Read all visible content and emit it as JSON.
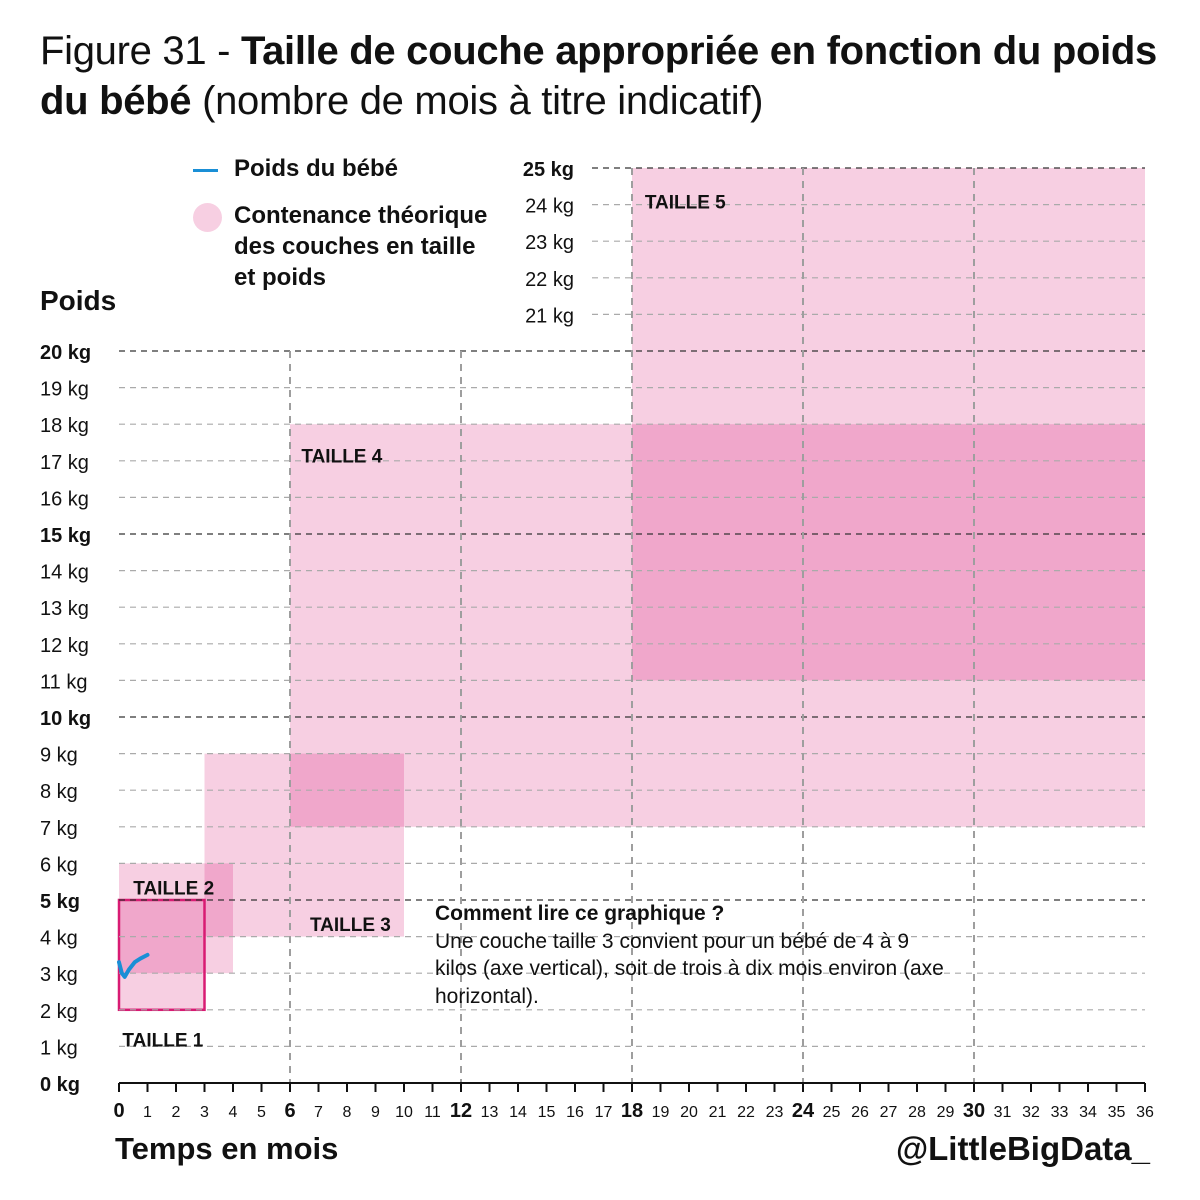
{
  "title": {
    "prefix": "Figure 31 - ",
    "main": "Taille de couche appropriée en fonction du poids du bébé",
    "suffix": " (nombre de mois à titre indicatif)"
  },
  "legend": {
    "line_label": "Poids du bébé",
    "area_label": "Contenance théorique des couches en taille et poids"
  },
  "note": {
    "heading": "Comment lire ce graphique ?",
    "text": "Une couche taille 3 convient pour un bébé de 4 à 9 kilos (axe vertical), soit de trois à dix mois environ (axe horizontal)."
  },
  "credit": "@LittleBigData_",
  "colors": {
    "area": "#f7cfe2",
    "overlap": "#f0a7cb",
    "outline": "#d81b73",
    "line": "#1a8fd6",
    "grid": "#9e9e9e"
  },
  "chart_data": {
    "type": "area",
    "xlabel": "Temps en mois",
    "ylabel": "Poids",
    "xlim": [
      0,
      36
    ],
    "ylim": [
      0,
      25
    ],
    "x_ticks": [
      0,
      1,
      2,
      3,
      4,
      5,
      6,
      7,
      8,
      9,
      10,
      11,
      12,
      13,
      14,
      15,
      16,
      17,
      18,
      19,
      20,
      21,
      22,
      23,
      24,
      25,
      26,
      27,
      28,
      29,
      30,
      31,
      32,
      33,
      34,
      35,
      36
    ],
    "x_major_ticks": [
      0,
      6,
      12,
      18,
      24,
      30
    ],
    "y_ticks_lower": [
      "0 kg",
      "1 kg",
      "2 kg",
      "3 kg",
      "4 kg",
      "5 kg",
      "6 kg",
      "7 kg",
      "8 kg",
      "9 kg",
      "10 kg",
      "11 kg",
      "12 kg",
      "13 kg",
      "14 kg",
      "15 kg",
      "16 kg",
      "17 kg",
      "18 kg",
      "19 kg",
      "20 kg"
    ],
    "y_ticks_upper": [
      "21 kg",
      "22 kg",
      "23 kg",
      "24 kg",
      "25 kg"
    ],
    "y_bold_ticks": [
      "0 kg",
      "5 kg",
      "10 kg",
      "15 kg",
      "20 kg",
      "25 kg"
    ],
    "sizes": [
      {
        "name": "TAILLE 1",
        "x": [
          0,
          3
        ],
        "kg": [
          2,
          5
        ]
      },
      {
        "name": "TAILLE 2",
        "x": [
          0,
          4
        ],
        "kg": [
          3,
          6
        ]
      },
      {
        "name": "TAILLE 3",
        "x": [
          3,
          10
        ],
        "kg": [
          4,
          9
        ]
      },
      {
        "name": "TAILLE 4",
        "x": [
          6,
          36
        ],
        "kg": [
          7,
          18
        ]
      },
      {
        "name": "TAILLE 5",
        "x": [
          18,
          36
        ],
        "kg": [
          11,
          25
        ]
      }
    ],
    "series": [
      {
        "name": "Poids du bébé",
        "x": [
          0,
          0.1,
          0.2,
          0.35,
          0.55,
          0.75,
          1.0
        ],
        "y": [
          3.3,
          3.0,
          2.9,
          3.1,
          3.3,
          3.4,
          3.5
        ]
      }
    ]
  }
}
